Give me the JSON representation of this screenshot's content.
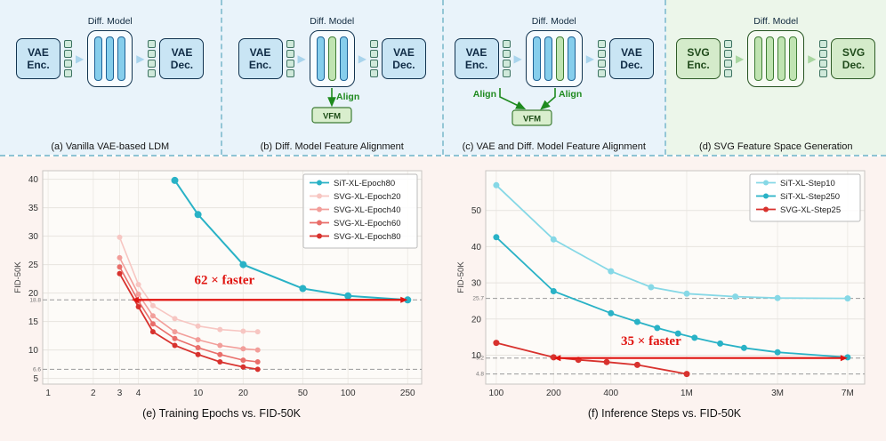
{
  "figure": {
    "top_panels": [
      {
        "caption": "(a) Vanilla VAE-based LDM",
        "model_label": "Diff. Model",
        "encoder": "VAE Enc.",
        "decoder": "VAE Dec."
      },
      {
        "caption": "(b) Diff. Model Feature Alignment",
        "model_label": "Diff. Model",
        "encoder": "VAE Enc.",
        "decoder": "VAE Dec.",
        "align_label": "Align",
        "vfm_label": "VFM"
      },
      {
        "caption": "(c) VAE and Diff. Model Feature Alignment",
        "model_label": "Diff. Model",
        "encoder": "VAE Enc.",
        "decoder": "VAE Dec.",
        "align_label_left": "Align",
        "align_label_right": "Align",
        "vfm_label": "VFM"
      },
      {
        "caption": "(d) SVG Feature Space Generation",
        "model_label": "Diff. Model",
        "encoder": "SVG Enc.",
        "decoder": "SVG Dec."
      }
    ]
  },
  "chart_data": [
    {
      "type": "line",
      "caption": "(e) Training Epochs vs. FID-50K",
      "xlabel": "",
      "ylabel": "FID-50K",
      "xscale": "log",
      "xlim": [
        0.92,
        310
      ],
      "ylim": [
        4,
        41.5
      ],
      "bg": "#fdfbf8",
      "xticks": [
        {
          "v": 1,
          "label": "1"
        },
        {
          "v": 2,
          "label": "2"
        },
        {
          "v": 3,
          "label": "3"
        },
        {
          "v": 4,
          "label": "4"
        },
        {
          "v": 10,
          "label": "10"
        },
        {
          "v": 20,
          "label": "20"
        },
        {
          "v": 50,
          "label": "50"
        },
        {
          "v": 100,
          "label": "100"
        },
        {
          "v": 250,
          "label": "250"
        }
      ],
      "yticks": [
        5,
        10,
        15,
        20,
        25,
        30,
        35,
        40
      ],
      "ref_lines": [
        {
          "y": 18.8,
          "label": "18.8"
        },
        {
          "y": 6.6,
          "label": "6.6"
        }
      ],
      "series": [
        {
          "name": "SiT-XL-Epoch80",
          "color": "#29b2c6",
          "r": 4,
          "lw": 2,
          "points": [
            [
              7,
              39.8
            ],
            [
              10,
              33.8
            ],
            [
              20,
              25
            ],
            [
              50,
              20.8
            ],
            [
              100,
              19.5
            ],
            [
              250,
              18.8
            ]
          ]
        },
        {
          "name": "SVG-XL-Epoch20",
          "color": "#f7c6c2",
          "r": 3,
          "lw": 1.6,
          "points": [
            [
              3,
              29.8
            ],
            [
              4,
              21.5
            ],
            [
              5,
              17.8
            ],
            [
              7,
              15.5
            ],
            [
              10,
              14.2
            ],
            [
              14,
              13.6
            ],
            [
              20,
              13.3
            ],
            [
              25,
              13.2
            ]
          ]
        },
        {
          "name": "SVG-XL-Epoch40",
          "color": "#f29e9a",
          "r": 3,
          "lw": 1.6,
          "points": [
            [
              3,
              26.2
            ],
            [
              4,
              19.8
            ],
            [
              5,
              16
            ],
            [
              7,
              13.2
            ],
            [
              10,
              11.8
            ],
            [
              14,
              10.8
            ],
            [
              20,
              10.2
            ],
            [
              25,
              10
            ]
          ]
        },
        {
          "name": "SVG-XL-Epoch60",
          "color": "#e96e6a",
          "r": 3,
          "lw": 1.6,
          "points": [
            [
              3,
              24.6
            ],
            [
              4,
              18.6
            ],
            [
              5,
              14.6
            ],
            [
              7,
              12
            ],
            [
              10,
              10.4
            ],
            [
              14,
              9.2
            ],
            [
              20,
              8.2
            ],
            [
              25,
              7.9
            ]
          ]
        },
        {
          "name": "SVG-XL-Epoch80",
          "color": "#d8322e",
          "r": 3,
          "lw": 1.8,
          "points": [
            [
              3,
              23.4
            ],
            [
              4,
              17.6
            ],
            [
              5,
              13.2
            ],
            [
              7,
              10.8
            ],
            [
              10,
              9.2
            ],
            [
              14,
              7.9
            ],
            [
              20,
              7
            ],
            [
              25,
              6.6
            ]
          ]
        }
      ],
      "annotation": {
        "text": "62 × faster",
        "y": 18.8,
        "x1": 3.6,
        "x2": 250,
        "tx": 15,
        "ty": 21.6,
        "color": "#e01410"
      },
      "legend": {
        "position": "top-right",
        "width": 128
      }
    },
    {
      "type": "line",
      "caption": "(f) Inference Steps vs. FID-50K",
      "xlabel": "",
      "ylabel": "FID-50K",
      "xscale": "log",
      "xlim": [
        88,
        8600
      ],
      "ylim": [
        2,
        61
      ],
      "bg": "#fdfbf8",
      "xticks": [
        {
          "v": 100,
          "label": "100"
        },
        {
          "v": 200,
          "label": "200"
        },
        {
          "v": 400,
          "label": "400"
        },
        {
          "v": 1000,
          "label": "1M"
        },
        {
          "v": 3000,
          "label": "3M"
        },
        {
          "v": 7000,
          "label": "7M"
        }
      ],
      "yticks": [
        10,
        20,
        30,
        40,
        50
      ],
      "ref_lines": [
        {
          "y": 25.7,
          "label": "25.7"
        },
        {
          "y": 9.2,
          "label": "9.2"
        },
        {
          "y": 4.8,
          "label": "4.8"
        }
      ],
      "series": [
        {
          "name": "SiT-XL-Step10",
          "color": "#86d8e6",
          "r": 3.5,
          "lw": 1.8,
          "points": [
            [
              100,
              57
            ],
            [
              200,
              42
            ],
            [
              400,
              33.2
            ],
            [
              650,
              28.8
            ],
            [
              1000,
              27
            ],
            [
              1800,
              26.2
            ],
            [
              3000,
              25.8
            ],
            [
              7000,
              25.7
            ]
          ]
        },
        {
          "name": "SiT-XL-Step250",
          "color": "#29b2c6",
          "r": 3.5,
          "lw": 1.8,
          "points": [
            [
              100,
              42.6
            ],
            [
              200,
              27.7
            ],
            [
              400,
              21.6
            ],
            [
              550,
              19.2
            ],
            [
              700,
              17.5
            ],
            [
              900,
              16
            ],
            [
              1100,
              14.8
            ],
            [
              1500,
              13.2
            ],
            [
              2000,
              12
            ],
            [
              3000,
              10.8
            ],
            [
              7000,
              9.4
            ]
          ]
        },
        {
          "name": "SVG-XL-Step25",
          "color": "#d8322e",
          "r": 3.5,
          "lw": 1.8,
          "points": [
            [
              100,
              13.4
            ],
            [
              200,
              9.4
            ],
            [
              270,
              8.7
            ],
            [
              380,
              8.1
            ],
            [
              550,
              7.3
            ],
            [
              1000,
              4.8
            ]
          ]
        }
      ],
      "annotation": {
        "text": "35 × faster",
        "y": 9.2,
        "x1": 200,
        "x2": 7000,
        "tx": 650,
        "ty": 12.8,
        "color": "#e01410"
      },
      "legend": {
        "position": "top-right",
        "width": 124
      }
    }
  ]
}
